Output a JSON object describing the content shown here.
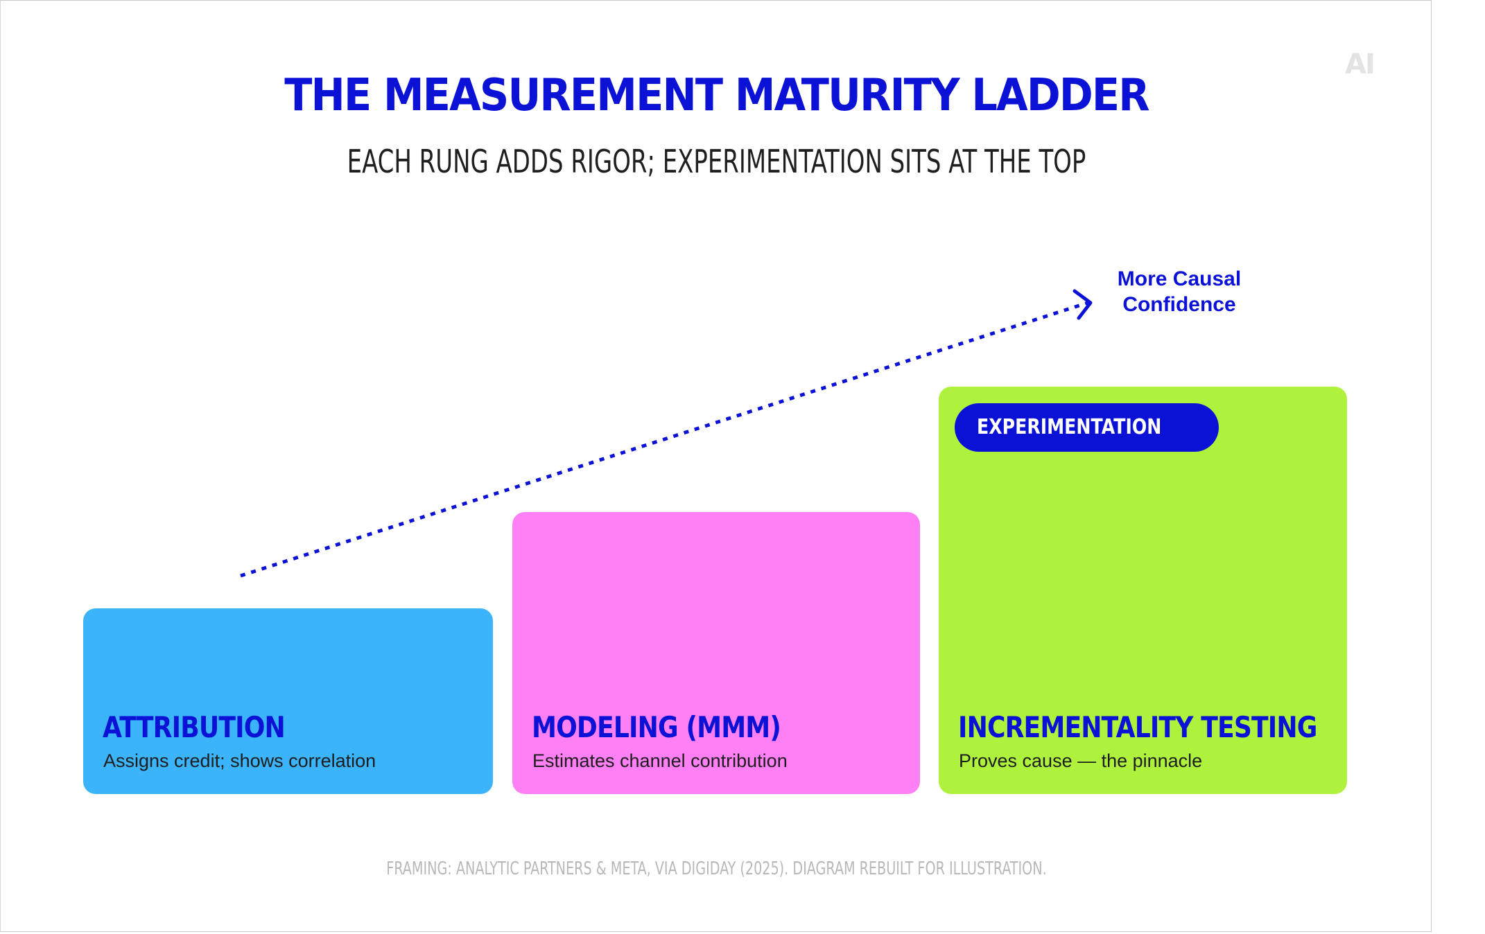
{
  "logo": "AI",
  "title": "THE MEASUREMENT MATURITY LADDER",
  "subtitle": "EACH RUNG ADDS RIGOR; EXPERIMENTATION SITS AT THE TOP",
  "arrow": {
    "label_line1": "More Causal",
    "label_line2": "Confidence",
    "color": "#0b12d6"
  },
  "rungs": [
    {
      "title": "ATTRIBUTION",
      "description": "Assigns credit; shows correlation",
      "color": "#3bb4fb"
    },
    {
      "title": "MODELING (MMM)",
      "description": "Estimates channel contribution",
      "color": "#fe80f4"
    },
    {
      "title": "INCREMENTALITY TESTING",
      "description": "Proves cause — the pinnacle",
      "color": "#aef23e",
      "badge": "EXPERIMENTATION"
    }
  ],
  "footer": "FRAMING: ANALYTIC PARTNERS & META, VIA DIGIDAY (2025). DIAGRAM REBUILT FOR ILLUSTRATION.",
  "colors": {
    "accent": "#0b12d6",
    "text": "#1f1f1f",
    "muted": "#b8b8b8"
  }
}
